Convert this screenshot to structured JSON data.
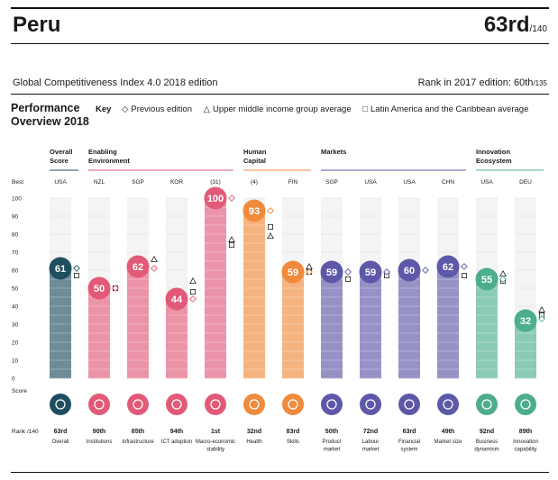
{
  "header": {
    "country": "Peru",
    "rank": "63rd",
    "rank_of": "/140",
    "edition": "Global Competitiveness Index 4.0 2018 edition",
    "rank_2017_label": "Rank in 2017 edition: 60th",
    "rank_2017_of": "/135",
    "title_line1": "Performance",
    "title_line2": "Overview 2018"
  },
  "key": {
    "label": "Key",
    "items": [
      {
        "symbol": "◇",
        "label": "Previous edition"
      },
      {
        "symbol": "△",
        "label": "Upper middle income group average"
      },
      {
        "symbol": "□",
        "label": "Latin America and the Caribbean average"
      }
    ]
  },
  "chart_data": {
    "type": "bar",
    "y_axis_ticks": [
      0,
      10,
      20,
      30,
      40,
      50,
      60,
      70,
      80,
      90,
      100
    ],
    "ylim": [
      0,
      100
    ],
    "row_labels": {
      "best": "Best",
      "score": "Score",
      "rank": "Rank /140"
    },
    "groups": [
      {
        "label": "Overall\nScore",
        "color": "#1f4e5f"
      },
      {
        "label": "Enabling\nEnvironment",
        "color": "#e25a78"
      },
      {
        "label": "Human\nCapital",
        "color": "#f08a3c"
      },
      {
        "label": "Markets",
        "color": "#5d58a8"
      },
      {
        "label": "Innovation\nEcosystem",
        "color": "#4cae8a"
      }
    ],
    "categories": [
      {
        "name": "Overall",
        "group": 0,
        "score": 61,
        "rank": "63rd",
        "best": "USA",
        "previous": 61,
        "upper_middle": null,
        "latam": 57,
        "icon": "globe-icon"
      },
      {
        "name": "Institutions",
        "group": 1,
        "score": 50,
        "rank": "90th",
        "best": "NZL",
        "previous": 50,
        "upper_middle": null,
        "latam": 50,
        "icon": "institution-icon"
      },
      {
        "name": "Infrastructure",
        "group": 1,
        "score": 62,
        "rank": "85th",
        "best": "SGP",
        "previous": 61,
        "upper_middle": 66,
        "latam": null,
        "icon": "infrastructure-icon"
      },
      {
        "name": "ICT adoption",
        "group": 1,
        "score": 44,
        "rank": "94th",
        "best": "KOR",
        "previous": 44,
        "upper_middle": 54,
        "latam": 48,
        "icon": "chip-icon"
      },
      {
        "name": "Macro-economic stability",
        "group": 1,
        "score": 100,
        "rank": "1st",
        "best": "(31)",
        "previous": 100,
        "upper_middle": 77,
        "latam": 74,
        "icon": "trend-icon"
      },
      {
        "name": "Health",
        "group": 2,
        "score": 93,
        "rank": "32nd",
        "best": "(4)",
        "previous": 93,
        "upper_middle": 79,
        "latam": 84,
        "icon": "heart-icon"
      },
      {
        "name": "Skills",
        "group": 2,
        "score": 59,
        "rank": "83rd",
        "best": "FIN",
        "previous": 59,
        "upper_middle": 62,
        "latam": 59,
        "icon": "skills-icon"
      },
      {
        "name": "Product market",
        "group": 3,
        "score": 59,
        "rank": "50th",
        "best": "SGP",
        "previous": 59,
        "upper_middle": null,
        "latam": 55,
        "icon": "tag-icon"
      },
      {
        "name": "Labour market",
        "group": 3,
        "score": 59,
        "rank": "72nd",
        "best": "USA",
        "previous": 59,
        "upper_middle": null,
        "latam": 57,
        "icon": "people-icon"
      },
      {
        "name": "Financial system",
        "group": 3,
        "score": 60,
        "rank": "63rd",
        "best": "USA",
        "previous": 60,
        "upper_middle": null,
        "latam": null,
        "icon": "card-icon"
      },
      {
        "name": "Market size",
        "group": 3,
        "score": 62,
        "rank": "49th",
        "best": "CHN",
        "previous": 62,
        "upper_middle": null,
        "latam": 57,
        "icon": "expand-icon"
      },
      {
        "name": "Business dynamism",
        "group": 4,
        "score": 55,
        "rank": "92nd",
        "best": "USA",
        "previous": 55,
        "upper_middle": 58,
        "latam": 54,
        "icon": "building-icon"
      },
      {
        "name": "Innovation capability",
        "group": 4,
        "score": 32,
        "rank": "89th",
        "best": "DEU",
        "previous": 33,
        "upper_middle": 38,
        "latam": 35,
        "icon": "bulb-icon"
      }
    ]
  }
}
